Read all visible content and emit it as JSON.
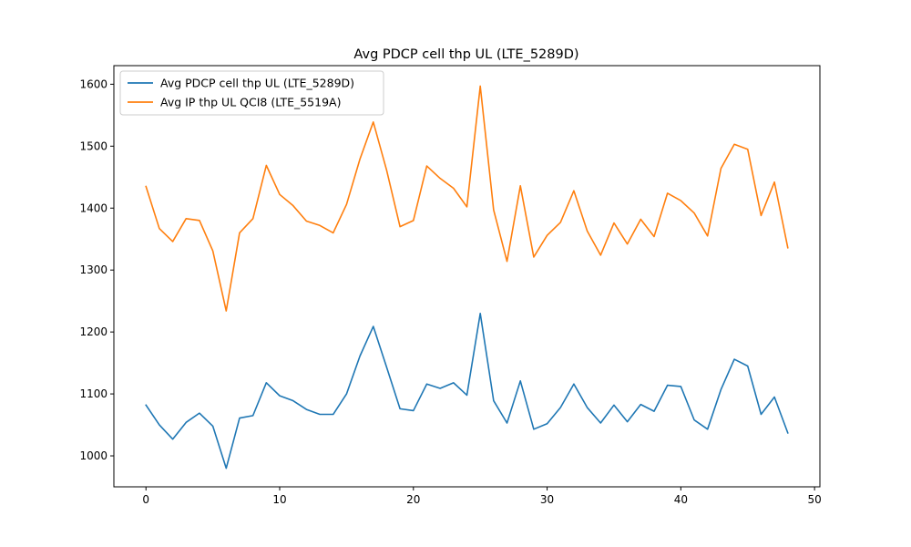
{
  "chart_data": {
    "type": "line",
    "title": "Avg PDCP cell thp UL (LTE_5289D)",
    "xlabel": "",
    "ylabel": "",
    "xlim": [
      -2.4,
      50.4
    ],
    "ylim": [
      950,
      1630
    ],
    "xticks": [
      0,
      10,
      20,
      30,
      40,
      50
    ],
    "yticks": [
      1000,
      1100,
      1200,
      1300,
      1400,
      1500,
      1600
    ],
    "grid": false,
    "legend_position": "top-left",
    "x": [
      0,
      1,
      2,
      3,
      4,
      5,
      6,
      7,
      8,
      9,
      10,
      11,
      12,
      13,
      14,
      15,
      16,
      17,
      18,
      19,
      20,
      21,
      22,
      23,
      24,
      25,
      26,
      27,
      28,
      29,
      30,
      31,
      32,
      33,
      34,
      35,
      36,
      37,
      38,
      39,
      40,
      41,
      42,
      43,
      44,
      45,
      46,
      47,
      48
    ],
    "series": [
      {
        "name": "Avg PDCP cell thp UL (LTE_5289D)",
        "color": "#1f77b4",
        "values": [
          1082,
          1050,
          1027,
          1054,
          1069,
          1048,
          980,
          1061,
          1065,
          1118,
          1097,
          1089,
          1075,
          1067,
          1067,
          1100,
          1161,
          1209,
          1143,
          1076,
          1073,
          1116,
          1109,
          1118,
          1098,
          1230,
          1089,
          1053,
          1121,
          1043,
          1052,
          1078,
          1116,
          1078,
          1053,
          1082,
          1055,
          1083,
          1072,
          1114,
          1112,
          1058,
          1043,
          1107,
          1156,
          1145,
          1067,
          1095,
          1037
        ]
      },
      {
        "name": "Avg IP thp UL QCI8 (LTE_5519A)",
        "color": "#ff7f0e",
        "values": [
          1435,
          1367,
          1346,
          1383,
          1380,
          1331,
          1234,
          1360,
          1383,
          1469,
          1422,
          1404,
          1379,
          1372,
          1360,
          1406,
          1479,
          1539,
          1461,
          1370,
          1380,
          1468,
          1448,
          1432,
          1402,
          1597,
          1397,
          1314,
          1436,
          1321,
          1356,
          1377,
          1428,
          1363,
          1324,
          1376,
          1342,
          1382,
          1354,
          1424,
          1412,
          1392,
          1355,
          1464,
          1503,
          1495,
          1388,
          1442,
          1336
        ]
      }
    ]
  }
}
